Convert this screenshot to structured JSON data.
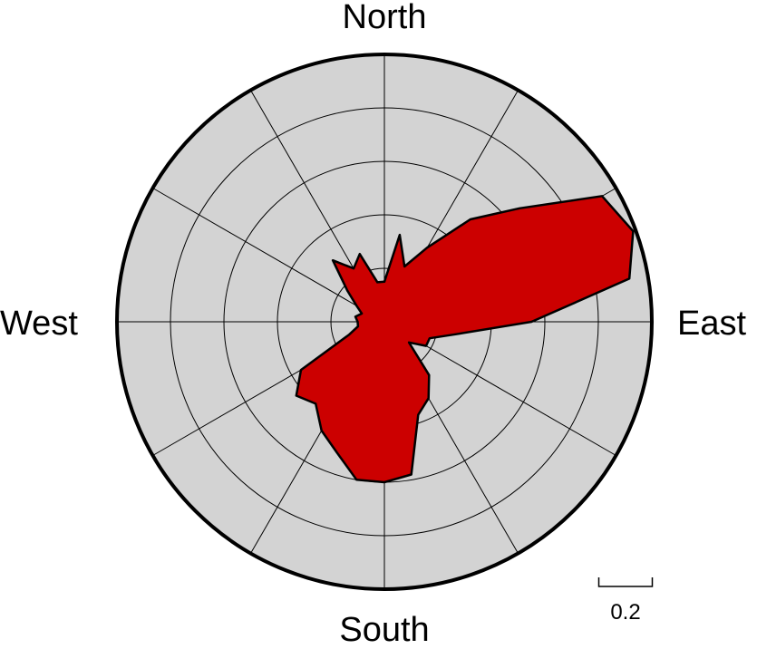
{
  "chart_data": {
    "type": "rose",
    "title": "",
    "direction_labels": {
      "north": "North",
      "east": "East",
      "south": "South",
      "west": "West"
    },
    "radial_max": 1.0,
    "radial_rings": [
      0.2,
      0.4,
      0.6,
      0.8,
      1.0
    ],
    "spoke_interval_deg": 30,
    "grid": true,
    "scale_bar_label": "0.2",
    "scale_bar_value": 0.2,
    "series": [
      {
        "azimuth_deg": [
          0,
          10,
          20,
          30,
          40,
          50,
          60,
          70,
          80,
          90,
          100,
          110,
          120,
          130,
          140,
          150,
          160,
          170,
          180,
          190,
          200,
          210,
          220,
          230,
          240,
          250,
          260,
          270,
          280,
          290,
          300,
          310,
          320,
          330,
          340,
          350
        ],
        "values": [
          0.15,
          0.33,
          0.22,
          0.32,
          0.5,
          0.66,
          0.94,
          0.99,
          0.93,
          0.55,
          0.27,
          0.18,
          0.18,
          0.12,
          0.26,
          0.33,
          0.37,
          0.58,
          0.6,
          0.6,
          0.52,
          0.47,
          0.4,
          0.43,
          0.36,
          0.14,
          0.1,
          0.1,
          0.11,
          0.09,
          0.12,
          0.18,
          0.3,
          0.23,
          0.27,
          0.15
        ],
        "color": "#cc0000"
      }
    ],
    "background_color": "#d3d3d3"
  }
}
